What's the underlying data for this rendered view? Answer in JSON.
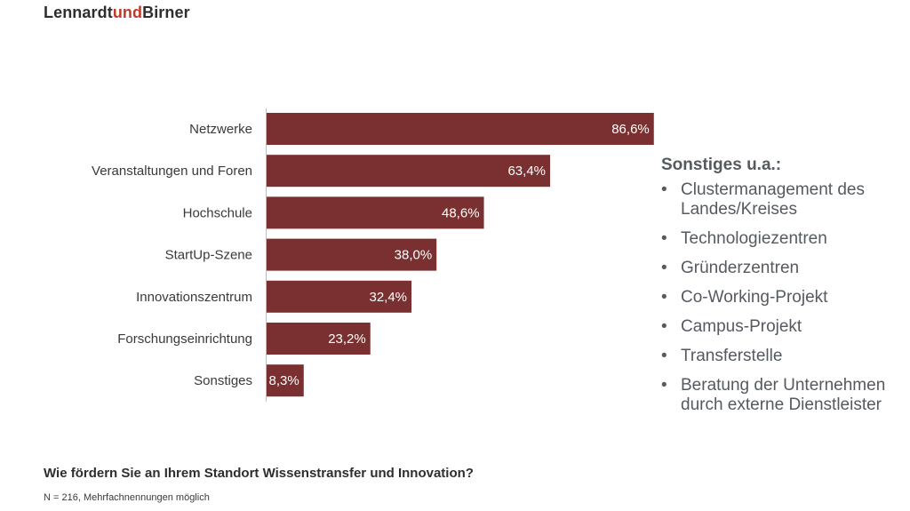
{
  "header": {
    "logo_part1": "Lennardt",
    "logo_part2": "und",
    "logo_part3": "Birner"
  },
  "colors": {
    "bar": "#7a3030",
    "accent": "#c0392b"
  },
  "chart_data": {
    "type": "bar",
    "orientation": "horizontal",
    "categories": [
      "Netzwerke",
      "Veranstaltungen und Foren",
      "Hochschule",
      "StartUp-Szene",
      "Innovationszentrum",
      "Forschungseinrichtung",
      "Sonstiges"
    ],
    "values": [
      86.6,
      63.4,
      48.6,
      38.0,
      32.4,
      23.2,
      8.3
    ],
    "value_labels": [
      "86,6%",
      "63,4%",
      "48,6%",
      "38,0%",
      "32,4%",
      "23,2%",
      "8,3%"
    ],
    "xlim": [
      0,
      100
    ],
    "grid": false
  },
  "sidebar": {
    "title": "Sonstiges u.a.:",
    "bullet": "•",
    "items": [
      "Clustermanagement des Landes/Kreises",
      "Technologiezentren",
      "Gründerzentren",
      "Co-Working-Projekt",
      "Campus-Projekt",
      "Transferstelle",
      "Beratung der Unternehmen durch externe Dienstleister"
    ]
  },
  "footer": {
    "question": "Wie fördern Sie an Ihrem Standort Wissenstransfer und Innovation?",
    "note": "N = 216, Mehrfachnennungen möglich"
  }
}
